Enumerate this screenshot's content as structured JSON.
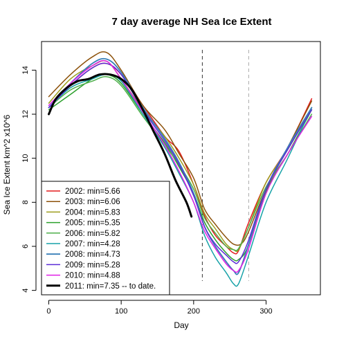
{
  "chart_data": {
    "type": "line",
    "title": "7 day average NH Sea Ice Extent",
    "xlabel": "Day",
    "ylabel": "Sea Ice Extent km^2 x10^6",
    "xlim": [
      -10,
      375
    ],
    "ylim": [
      3.8,
      15.3
    ],
    "xticks": [
      0,
      100,
      200,
      300
    ],
    "yticks": [
      4,
      6,
      8,
      10,
      12,
      14
    ],
    "grid": false,
    "legend_position": "bottom-left",
    "vlines": [
      {
        "x": 212,
        "style": "dashed",
        "color": "#333333"
      },
      {
        "x": 276,
        "style": "dashed",
        "color": "#aaaaaa"
      }
    ],
    "series": [
      {
        "name": "2002: min=5.66",
        "color": "#e41a1c",
        "width": 1.5,
        "x": [
          0,
          30,
          60,
          80,
          100,
          130,
          160,
          180,
          200,
          215,
          230,
          245,
          255,
          262,
          275,
          300,
          330,
          363
        ],
        "y": [
          12.3,
          13.3,
          14.1,
          14.3,
          13.8,
          12.4,
          11.0,
          10.3,
          8.8,
          7.4,
          6.5,
          6.0,
          5.7,
          5.8,
          7.0,
          8.9,
          10.5,
          12.7
        ]
      },
      {
        "name": "2003: min=6.06",
        "color": "#8c510a",
        "width": 1.5,
        "x": [
          0,
          30,
          60,
          80,
          100,
          130,
          160,
          180,
          200,
          215,
          230,
          245,
          255,
          265,
          275,
          300,
          330,
          363
        ],
        "y": [
          12.8,
          13.8,
          14.6,
          14.8,
          14.0,
          12.4,
          11.3,
          10.2,
          9.1,
          7.7,
          7.0,
          6.4,
          6.1,
          6.1,
          6.6,
          8.6,
          10.5,
          12.6
        ]
      },
      {
        "name": "2004: min=5.83",
        "color": "#9c9c1c",
        "width": 1.5,
        "x": [
          0,
          30,
          60,
          80,
          100,
          130,
          160,
          180,
          200,
          215,
          230,
          245,
          255,
          262,
          275,
          300,
          330,
          363
        ],
        "y": [
          12.5,
          13.6,
          14.2,
          14.4,
          13.6,
          12.2,
          11.0,
          10.0,
          8.8,
          7.5,
          6.8,
          6.1,
          5.85,
          5.85,
          6.8,
          8.9,
          10.4,
          12.3
        ]
      },
      {
        "name": "2005: min=5.35",
        "color": "#2ca02c",
        "width": 1.5,
        "x": [
          0,
          30,
          60,
          80,
          100,
          130,
          160,
          180,
          200,
          215,
          230,
          245,
          255,
          262,
          275,
          300,
          330,
          363
        ],
        "y": [
          12.2,
          12.9,
          13.6,
          13.8,
          13.4,
          12.0,
          10.7,
          9.6,
          8.4,
          7.1,
          6.3,
          5.7,
          5.4,
          5.4,
          6.0,
          8.5,
          10.2,
          12.2
        ]
      },
      {
        "name": "2006: min=5.82",
        "color": "#4daf4a",
        "width": 1.5,
        "x": [
          0,
          30,
          60,
          80,
          100,
          130,
          160,
          180,
          200,
          215,
          230,
          245,
          255,
          262,
          275,
          300,
          330,
          363
        ],
        "y": [
          12.3,
          13.1,
          13.5,
          13.7,
          13.3,
          11.9,
          10.6,
          9.7,
          8.6,
          7.3,
          6.6,
          6.0,
          5.85,
          5.9,
          6.8,
          8.7,
          10.2,
          12.0
        ]
      },
      {
        "name": "2007: min=4.28",
        "color": "#17a2a8",
        "width": 1.5,
        "x": [
          0,
          30,
          60,
          80,
          100,
          130,
          160,
          180,
          200,
          215,
          230,
          245,
          255,
          262,
          275,
          300,
          330,
          363
        ],
        "y": [
          12.3,
          13.2,
          13.6,
          13.8,
          13.5,
          12.0,
          10.5,
          9.3,
          8.0,
          6.5,
          5.5,
          4.8,
          4.3,
          4.3,
          5.5,
          8.0,
          10.0,
          12.3
        ]
      },
      {
        "name": "2008: min=4.73",
        "color": "#377eb8",
        "width": 1.8,
        "x": [
          0,
          30,
          60,
          80,
          100,
          130,
          160,
          180,
          200,
          215,
          230,
          245,
          255,
          262,
          275,
          300,
          330,
          363
        ],
        "y": [
          12.3,
          13.4,
          14.3,
          14.5,
          13.9,
          12.3,
          10.9,
          9.8,
          8.4,
          6.9,
          6.0,
          5.3,
          4.9,
          4.8,
          6.0,
          8.6,
          10.5,
          12.3
        ]
      },
      {
        "name": "2009: min=5.28",
        "color": "#5a2bd6",
        "width": 1.5,
        "x": [
          0,
          30,
          60,
          80,
          100,
          130,
          160,
          180,
          200,
          215,
          230,
          245,
          255,
          262,
          275,
          300,
          330,
          363
        ],
        "y": [
          12.3,
          13.3,
          14.1,
          14.3,
          13.8,
          12.2,
          10.8,
          9.7,
          8.3,
          6.9,
          6.1,
          5.6,
          5.3,
          5.3,
          6.2,
          8.6,
          10.4,
          12.2
        ]
      },
      {
        "name": "2010: min=4.88",
        "color": "#e01ee6",
        "width": 1.5,
        "x": [
          0,
          30,
          60,
          80,
          100,
          130,
          160,
          180,
          200,
          215,
          230,
          245,
          255,
          262,
          275,
          300,
          330,
          363
        ],
        "y": [
          12.4,
          13.4,
          14.2,
          14.4,
          13.6,
          12.1,
          10.6,
          9.4,
          8.0,
          6.7,
          5.9,
          5.2,
          4.9,
          4.9,
          5.8,
          8.4,
          10.2,
          11.9
        ]
      },
      {
        "name": "2011: min=7.35  -- to date.",
        "color": "#000000",
        "width": 3,
        "x": [
          0,
          10,
          25,
          40,
          55,
          70,
          85,
          100,
          115,
          130,
          145,
          160,
          175,
          190,
          197
        ],
        "y": [
          12.0,
          12.7,
          13.2,
          13.5,
          13.6,
          13.8,
          13.8,
          13.6,
          13.1,
          12.2,
          11.2,
          10.2,
          9.0,
          8.0,
          7.35
        ]
      }
    ]
  }
}
